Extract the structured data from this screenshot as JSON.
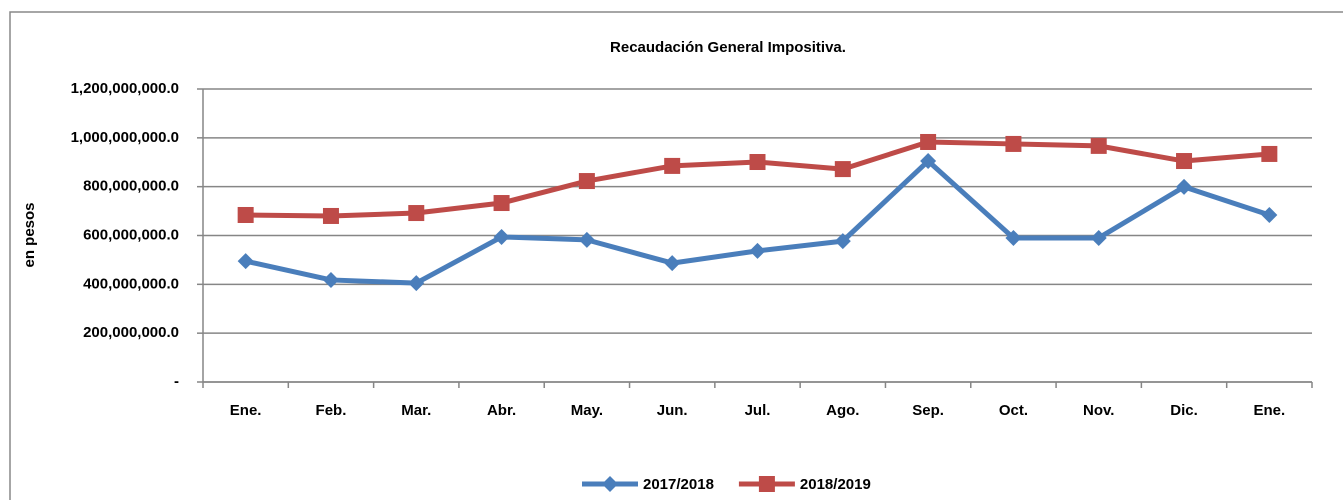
{
  "chart_data": {
    "type": "line",
    "title": "Recaudación General Impositiva.",
    "y_label": "en pesos",
    "categories": [
      "Ene.",
      "Feb.",
      "Mar.",
      "Abr.",
      "May.",
      "Jun.",
      "Jul.",
      "Ago.",
      "Sep.",
      "Oct.",
      "Nov.",
      "Dic.",
      "Ene."
    ],
    "series": [
      {
        "name": "2017/2018",
        "color": "#4a7ebb",
        "marker": "diamond",
        "values": [
          495000000,
          418000000,
          405000000,
          594000000,
          582000000,
          487000000,
          537000000,
          577000000,
          905000000,
          590000000,
          590000000,
          799000000,
          684000000
        ]
      },
      {
        "name": "2018/2019",
        "color": "#be4b48",
        "marker": "square",
        "values": [
          684000000,
          680000000,
          692000000,
          733000000,
          823000000,
          885000000,
          901000000,
          872000000,
          983000000,
          975000000,
          967000000,
          905000000,
          934000000
        ]
      }
    ],
    "ylim": [
      0,
      1200000000
    ],
    "yticks": [
      {
        "value": 0,
        "label": "-"
      },
      {
        "value": 200000000,
        "label": "200,000,000.0"
      },
      {
        "value": 400000000,
        "label": "400,000,000.0"
      },
      {
        "value": 600000000,
        "label": "600,000,000.0"
      },
      {
        "value": 800000000,
        "label": "800,000,000.0"
      },
      {
        "value": 1000000000,
        "label": "1,000,000,000.0"
      },
      {
        "value": 1200000000,
        "label": "1,200,000,000.0"
      }
    ],
    "grid": true,
    "legend": "bottom"
  }
}
